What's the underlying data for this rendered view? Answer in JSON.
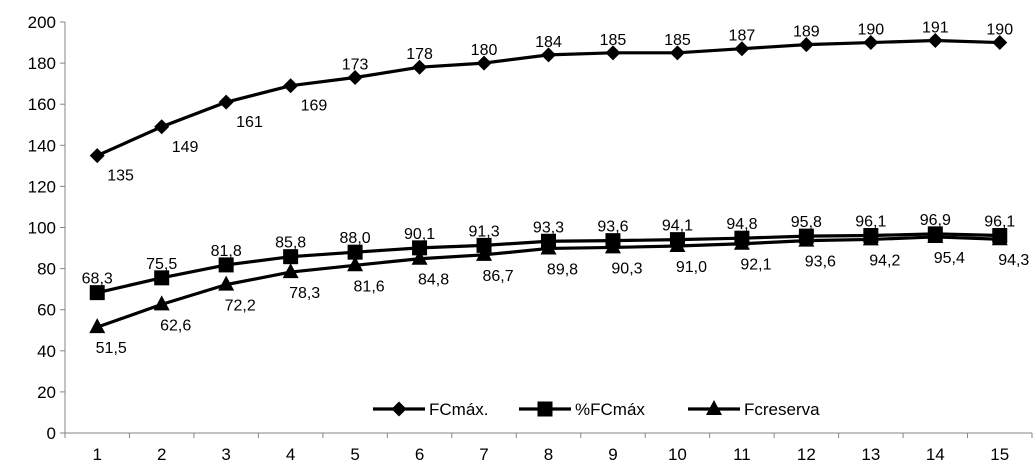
{
  "chart_data": {
    "type": "line",
    "x": [
      1,
      2,
      3,
      4,
      5,
      6,
      7,
      8,
      9,
      10,
      11,
      12,
      13,
      14,
      15
    ],
    "ylim": [
      0,
      200
    ],
    "yticks": [
      0,
      20,
      40,
      60,
      80,
      100,
      120,
      140,
      160,
      180,
      200
    ],
    "grid": false,
    "legend_position": "bottom-right",
    "series": [
      {
        "name": "FCmáx.",
        "marker": "diamond",
        "values": [
          135,
          149,
          161,
          169,
          173,
          178,
          180,
          184,
          185,
          185,
          187,
          189,
          190,
          191,
          190
        ],
        "labels": [
          "135",
          "149",
          "161",
          "169",
          "173",
          "178",
          "180",
          "184",
          "185",
          "185",
          "187",
          "189",
          "190",
          "191",
          "190"
        ]
      },
      {
        "name": "%FCmáx",
        "marker": "square",
        "values": [
          68.3,
          75.5,
          81.8,
          85.8,
          88.0,
          90.1,
          91.3,
          93.3,
          93.6,
          94.1,
          94.8,
          95.8,
          96.1,
          96.9,
          96.1
        ],
        "labels": [
          "68,3",
          "75,5",
          "81,8",
          "85,8",
          "88,0",
          "90,1",
          "91,3",
          "93,3",
          "93,6",
          "94,1",
          "94,8",
          "95,8",
          "96,1",
          "96,9",
          "96,1"
        ]
      },
      {
        "name": "Fcreserva",
        "marker": "triangle",
        "values": [
          51.5,
          62.6,
          72.2,
          78.3,
          81.6,
          84.8,
          86.7,
          89.8,
          90.3,
          91.0,
          92.1,
          93.6,
          94.2,
          95.4,
          94.3
        ],
        "labels": [
          "51,5",
          "62,6",
          "72,2",
          "78,3",
          "81,6",
          "84,8",
          "86,7",
          "89,8",
          "90,3",
          "91,0",
          "92,1",
          "93,6",
          "94,2",
          "95,4",
          "94,3"
        ]
      }
    ]
  }
}
